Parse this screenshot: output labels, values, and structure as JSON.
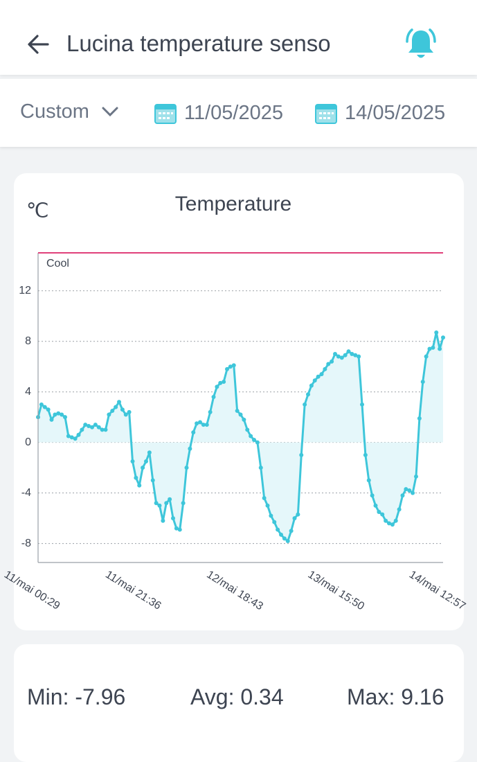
{
  "header": {
    "title": "Lucina temperature senso"
  },
  "filter": {
    "range": "Custom",
    "start_date": "11/05/2025",
    "end_date": "14/05/2025"
  },
  "chart_data": {
    "type": "line",
    "title": "Temperature",
    "y_label": "℃",
    "categories": [
      "11/mai 00:29",
      null,
      null,
      null,
      null,
      null,
      null,
      null,
      null,
      null,
      null,
      null,
      null,
      null,
      null,
      null,
      null,
      null,
      null,
      null,
      null,
      null,
      null,
      null,
      null,
      null,
      null,
      null,
      null,
      null,
      "11/mai 21:36",
      null,
      null,
      null,
      null,
      null,
      null,
      null,
      null,
      null,
      null,
      null,
      null,
      null,
      null,
      null,
      null,
      null,
      null,
      null,
      null,
      null,
      null,
      null,
      null,
      null,
      null,
      null,
      null,
      null,
      "12/mai 18:43",
      null,
      null,
      null,
      null,
      null,
      null,
      null,
      null,
      null,
      null,
      null,
      null,
      null,
      null,
      null,
      null,
      null,
      null,
      null,
      null,
      null,
      null,
      null,
      null,
      null,
      null,
      null,
      null,
      null,
      "13/mai 15:50",
      null,
      null,
      null,
      null,
      null,
      null,
      null,
      null,
      null,
      null,
      null,
      null,
      null,
      null,
      null,
      null,
      null,
      null,
      null,
      null,
      null,
      null,
      null,
      null,
      null,
      null,
      null,
      null,
      null,
      "14/mai 12:57"
    ],
    "series": [
      {
        "name": "Temperature",
        "color": "#3ec6da",
        "values": [
          2,
          3,
          2.8,
          2.6,
          1.8,
          2.2,
          2.3,
          2.2,
          2,
          0.5,
          0.4,
          0.3,
          0.6,
          1,
          1.4,
          1.3,
          1.2,
          1.4,
          1.2,
          1,
          1,
          2.2,
          2.5,
          2.8,
          3.2,
          2.6,
          2.2,
          2.4,
          -1.5,
          -2.8,
          -3.4,
          -2,
          -1.5,
          -0.8,
          -3,
          -4.8,
          -5,
          -6.2,
          -4.8,
          -4.5,
          -6,
          -6.8,
          -6.9,
          -4.8,
          -2,
          -0.5,
          0.8,
          1.5,
          1.6,
          1.4,
          1.4,
          2.4,
          3.6,
          4.4,
          4.7,
          4.8,
          5.8,
          6,
          6.1,
          2.5,
          2.2,
          1.8,
          1,
          0.5,
          0.2,
          0,
          -2,
          -4.4,
          -5,
          -5.8,
          -6.3,
          -6.9,
          -7.3,
          -7.6,
          -7.8,
          -7,
          -6,
          -5.7,
          -1,
          3,
          3.8,
          4.5,
          4.9,
          5.2,
          5.4,
          5.8,
          6.2,
          6.4,
          7,
          6.8,
          6.7,
          6.9,
          7.2,
          7,
          6.9,
          6.8,
          3,
          -1,
          -3,
          -4.2,
          -5,
          -5.5,
          -5.7,
          -6.2,
          -6.4,
          -6.5,
          -6.2,
          -5.3,
          -4.2,
          -3.7,
          -3.8,
          -4,
          -2.7,
          1.9,
          4.8,
          6.8,
          7.4,
          7.5,
          8.7,
          7.4,
          8.3
        ]
      }
    ],
    "area_fill": "#e5f7fa",
    "threshold": {
      "label": "Cool",
      "value": 15,
      "color": "#e0407a"
    },
    "ylim": [
      -9.5,
      15
    ],
    "yticks": [
      -8,
      -4,
      0,
      4,
      8,
      12
    ],
    "grid": true
  },
  "stats": {
    "min": "Min: -7.96",
    "avg": "Avg: 0.34",
    "max": "Max: 9.16"
  }
}
